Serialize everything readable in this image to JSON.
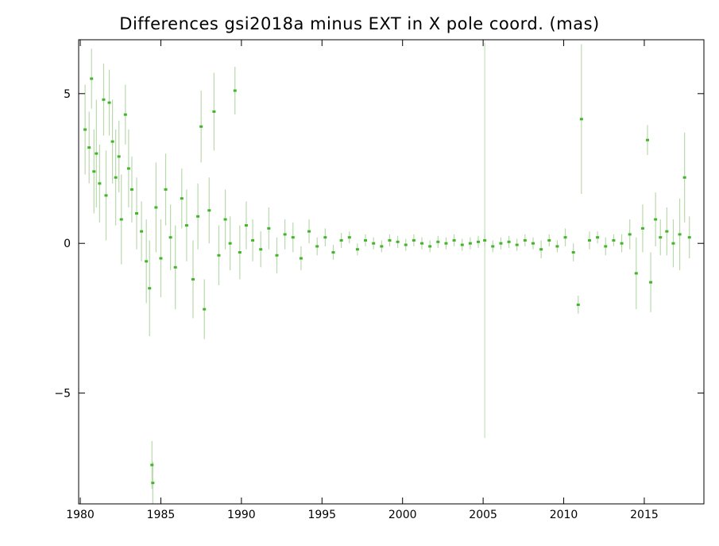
{
  "chart_data": {
    "type": "scatter",
    "title": "Differences gsi2018a minus EXT in X pole coord. (mas)",
    "xlabel": "",
    "ylabel": "",
    "xlim": [
      1979.9,
      2018.7
    ],
    "ylim": [
      -8.7,
      6.8
    ],
    "x_ticks": [
      1980,
      1985,
      1990,
      1995,
      2000,
      2005,
      2010,
      2015
    ],
    "x_tick_labels": [
      "1980",
      "1985",
      "1990",
      "1995",
      "2000",
      "2005",
      "2010",
      "2015"
    ],
    "y_ticks": [
      5,
      0,
      -5
    ],
    "y_tick_labels": [
      "5",
      "0",
      "−5"
    ],
    "grid": false,
    "legend": "none",
    "colors": {
      "points": "#44b52a",
      "error_bars": "#b9d9ad",
      "frame": "#000000"
    },
    "series": [
      {
        "x": [
          1980.3,
          1980.55,
          1980.7,
          1980.85,
          1981.0,
          1981.2,
          1981.45,
          1981.6,
          1981.8,
          1982.0,
          1982.2,
          1982.4,
          1982.55,
          1982.8,
          1983.0,
          1983.2,
          1983.5,
          1983.8,
          1984.1,
          1984.3,
          1984.45,
          1984.5,
          1984.7,
          1985.0,
          1985.3,
          1985.6,
          1985.9,
          1986.3,
          1986.6,
          1987.0,
          1987.3,
          1987.5,
          1987.7,
          1988.0,
          1988.3,
          1988.6,
          1989.0,
          1989.3,
          1989.6,
          1989.9,
          1990.3,
          1990.7,
          1991.2,
          1991.7,
          1992.2,
          1992.7,
          1993.2,
          1993.7,
          1994.2,
          1994.7,
          1995.2,
          1995.7,
          1996.2,
          1996.7,
          1997.2,
          1997.7,
          1998.2,
          1998.7,
          1999.2,
          1999.7,
          2000.2,
          2000.7,
          2001.2,
          2001.7,
          2002.2,
          2002.7,
          2003.2,
          2003.7,
          2004.2,
          2004.7,
          2005.1,
          2005.6,
          2006.1,
          2006.6,
          2007.1,
          2007.6,
          2008.1,
          2008.6,
          2009.1,
          2009.6,
          2010.1,
          2010.6,
          2010.9,
          2011.1,
          2011.6,
          2012.1,
          2012.6,
          2013.1,
          2013.6,
          2014.1,
          2014.5,
          2014.9,
          2015.2,
          2015.4,
          2015.7,
          2016.0,
          2016.4,
          2016.8,
          2017.2,
          2017.5,
          2017.8
        ],
        "y": [
          3.8,
          3.2,
          5.5,
          2.4,
          3.0,
          2.0,
          4.8,
          1.6,
          4.7,
          3.4,
          2.2,
          2.9,
          0.8,
          4.3,
          2.5,
          1.8,
          1.0,
          0.4,
          -0.6,
          -1.5,
          -7.4,
          -8.0,
          1.2,
          -0.5,
          1.8,
          0.2,
          -0.8,
          1.5,
          0.6,
          -1.2,
          0.9,
          3.9,
          -2.2,
          1.1,
          4.4,
          -0.4,
          0.8,
          0.0,
          5.1,
          -0.3,
          0.6,
          0.1,
          -0.2,
          0.5,
          -0.4,
          0.3,
          0.2,
          -0.5,
          0.4,
          -0.1,
          0.2,
          -0.3,
          0.1,
          0.2,
          -0.2,
          0.1,
          0.0,
          -0.1,
          0.1,
          0.05,
          -0.05,
          0.1,
          0.0,
          -0.1,
          0.05,
          0.0,
          0.1,
          -0.05,
          0.0,
          0.05,
          0.1,
          -0.1,
          0.0,
          0.05,
          -0.05,
          0.1,
          0.0,
          -0.2,
          0.1,
          -0.1,
          0.2,
          -0.3,
          -2.05,
          4.15,
          0.1,
          0.2,
          -0.1,
          0.1,
          0.0,
          0.3,
          -1.0,
          0.5,
          3.45,
          -1.3,
          0.8,
          0.2,
          0.4,
          0.0,
          0.3,
          2.2,
          0.2
        ],
        "error": [
          1.5,
          1.2,
          1.0,
          1.4,
          1.8,
          1.3,
          1.2,
          1.5,
          1.1,
          1.4,
          1.6,
          1.2,
          1.5,
          1.0,
          1.3,
          1.1,
          1.2,
          1.0,
          1.4,
          1.6,
          0.8,
          0.7,
          1.5,
          1.3,
          1.2,
          1.1,
          1.4,
          1.0,
          1.2,
          1.3,
          1.1,
          1.2,
          1.0,
          1.1,
          1.3,
          1.0,
          1.0,
          0.9,
          0.8,
          0.9,
          0.8,
          0.7,
          0.6,
          0.7,
          0.6,
          0.5,
          0.5,
          0.4,
          0.4,
          0.3,
          0.3,
          0.25,
          0.25,
          0.2,
          0.2,
          0.2,
          0.2,
          0.2,
          0.2,
          0.2,
          0.2,
          0.2,
          0.2,
          0.2,
          0.2,
          0.2,
          0.2,
          0.2,
          0.2,
          0.2,
          0.2,
          0.2,
          0.2,
          0.2,
          0.2,
          0.2,
          0.2,
          0.3,
          0.2,
          0.2,
          0.3,
          0.3,
          0.3,
          2.5,
          0.3,
          0.2,
          0.3,
          0.2,
          0.3,
          0.5,
          1.2,
          0.8,
          0.5,
          1.0,
          0.9,
          0.6,
          0.8,
          0.8,
          1.2,
          1.5,
          0.7
        ]
      }
    ],
    "annotations": [
      {
        "x": 2005.1,
        "y_low": -6.5,
        "y_high": 6.7
      }
    ]
  }
}
